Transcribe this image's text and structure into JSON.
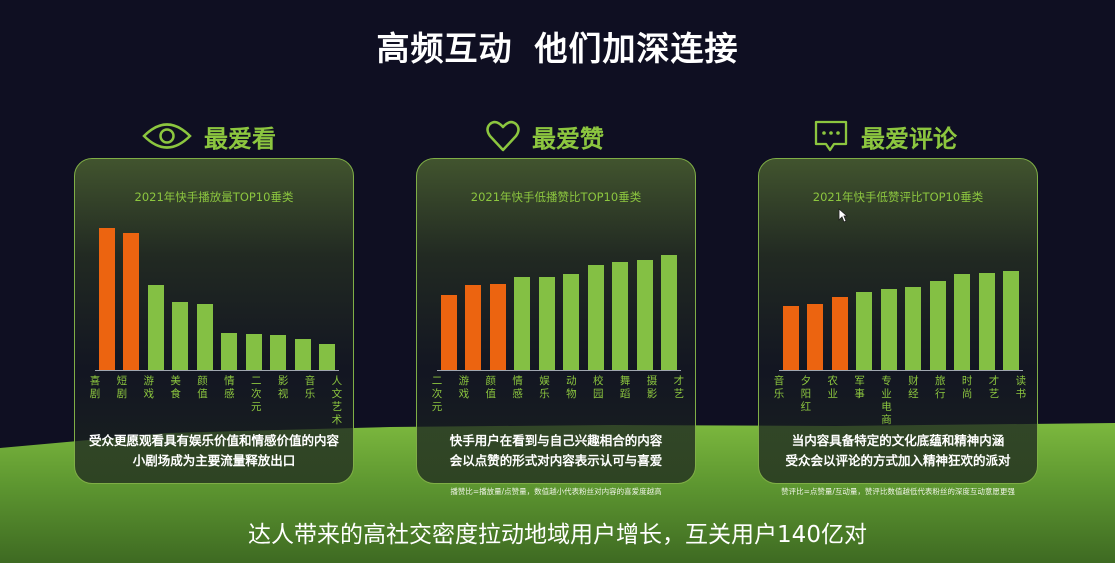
{
  "title": {
    "part1": "高频互动",
    "part2": "他们加深连接"
  },
  "colors": {
    "background": "#0f0f22",
    "accent_green": "#8cc63f",
    "bar_highlight": "#ec6410",
    "bar_normal": "#84c044"
  },
  "sections": [
    {
      "icon": "eye-icon",
      "heading": "最爱看",
      "card_title": "2021年快手播放量TOP10垂类",
      "desc_line1": "受众更愿观看具有娱乐价值和情感价值的内容",
      "desc_line2": "小剧场成为主要流量释放出口",
      "footnote": ""
    },
    {
      "icon": "heart-icon",
      "heading": "最爱赞",
      "card_title": "2021年快手低播赞比TOP10垂类",
      "desc_line1": "快手用户在看到与自己兴趣相合的内容",
      "desc_line2": "会以点赞的形式对内容表示认可与喜爱",
      "footnote": "播赞比=播放量/点赞量，数值越小代表粉丝对内容的喜爱度越高"
    },
    {
      "icon": "comment-icon",
      "heading": "最爱评论",
      "card_title": "2021年快手低赞评比TOP10垂类",
      "desc_line1": "当内容具备特定的文化底蕴和精神内涵",
      "desc_line2": "受众会以评论的方式加入精神狂欢的派对",
      "footnote": "赞评比=点赞量/互动量，赞评比数值越低代表粉丝的深度互动意愿更强"
    }
  ],
  "bottom_caption": "达人带来的高社交密度拉动地域用户增长，互关用户140亿对",
  "chart_data": [
    {
      "type": "bar",
      "title": "2021年快手播放量TOP10垂类",
      "categories": [
        "喜剧",
        "短剧",
        "游戏",
        "美食",
        "颜值",
        "情感",
        "二次元",
        "影视",
        "音乐",
        "人文艺术"
      ],
      "values": [
        142,
        137,
        85,
        68,
        66,
        37,
        36,
        35,
        31,
        26
      ],
      "highlight": [
        true,
        true,
        false,
        false,
        false,
        false,
        false,
        false,
        false,
        false
      ],
      "xlabel": "",
      "ylabel": "",
      "ylim": [
        0,
        150
      ],
      "grid": false,
      "legend": "none",
      "note": "relative bar heights (no axis values shown)"
    },
    {
      "type": "bar",
      "title": "2021年快手低播赞比TOP10垂类",
      "categories": [
        "二次元",
        "游戏",
        "颜值",
        "情感",
        "娱乐",
        "动物",
        "校园",
        "舞蹈",
        "摄影",
        "才艺"
      ],
      "values": [
        75,
        85,
        86,
        93,
        93,
        96,
        105,
        108,
        110,
        115
      ],
      "highlight": [
        true,
        true,
        true,
        false,
        false,
        false,
        false,
        false,
        false,
        false
      ],
      "xlabel": "",
      "ylabel": "",
      "ylim": [
        0,
        150
      ],
      "grid": false,
      "legend": "none",
      "note": "relative bar heights (no axis values shown)"
    },
    {
      "type": "bar",
      "title": "2021年快手低赞评比TOP10垂类",
      "categories": [
        "音乐",
        "夕阳红",
        "农业",
        "军事",
        "专业电商",
        "财经",
        "旅行",
        "时尚",
        "才艺",
        "读书"
      ],
      "values": [
        64,
        66,
        73,
        78,
        81,
        83,
        89,
        96,
        97,
        99
      ],
      "highlight": [
        true,
        true,
        true,
        false,
        false,
        false,
        false,
        false,
        false,
        false
      ],
      "xlabel": "",
      "ylabel": "",
      "ylim": [
        0,
        150
      ],
      "grid": false,
      "legend": "none",
      "note": "relative bar heights (no axis values shown)"
    }
  ]
}
